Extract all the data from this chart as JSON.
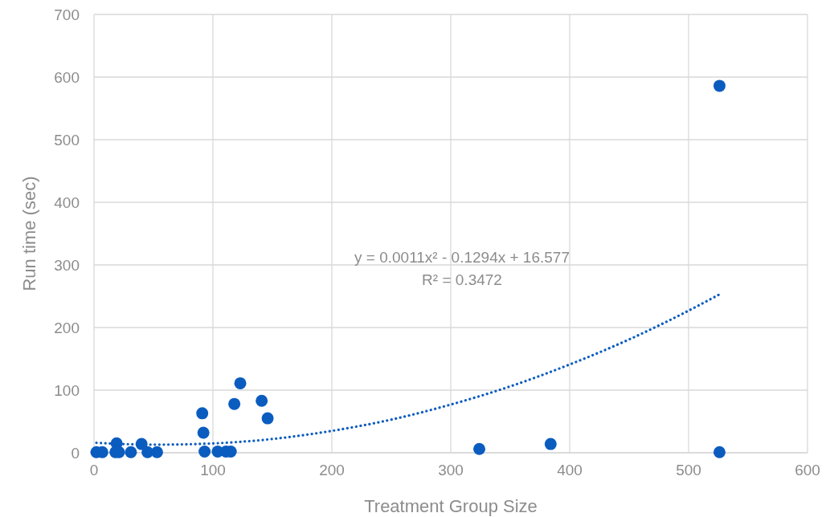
{
  "chart_data": {
    "type": "scatter",
    "xlabel": "Treatment Group Size",
    "ylabel": "Run time (sec)",
    "xlim": [
      0,
      600
    ],
    "xticks": [
      0,
      100,
      200,
      300,
      400,
      500,
      600
    ],
    "ylim": [
      0,
      700
    ],
    "yticks": [
      0,
      100,
      200,
      300,
      400,
      500,
      600,
      700
    ],
    "grid": true,
    "annotations": [
      "y = 0.0011x² - 0.1294x + 16.577",
      "R² = 0.3472"
    ],
    "series": [
      {
        "color": "#0b5cbf",
        "marker": "circle",
        "x": [
          2,
          7,
          18,
          21,
          31,
          45,
          53,
          93,
          104,
          111,
          115,
          19,
          40,
          91,
          92,
          118,
          123,
          141,
          146,
          324,
          384,
          526,
          526
        ],
        "values": [
          1,
          1,
          1,
          1,
          1,
          1,
          1,
          2,
          2,
          2,
          2,
          15,
          14,
          63,
          32,
          78,
          111,
          83,
          55,
          6,
          14,
          586,
          1
        ]
      },
      {
        "type": "line",
        "color": "#0b5cbf",
        "line_style": "dotted",
        "marker": "none",
        "x": [
          2,
          50,
          100,
          150,
          200,
          250,
          300,
          350,
          400,
          450,
          500,
          526
        ],
        "values": [
          16,
          13,
          15,
          22,
          35,
          53,
          77,
          106,
          141,
          181,
          227,
          253
        ]
      }
    ]
  }
}
